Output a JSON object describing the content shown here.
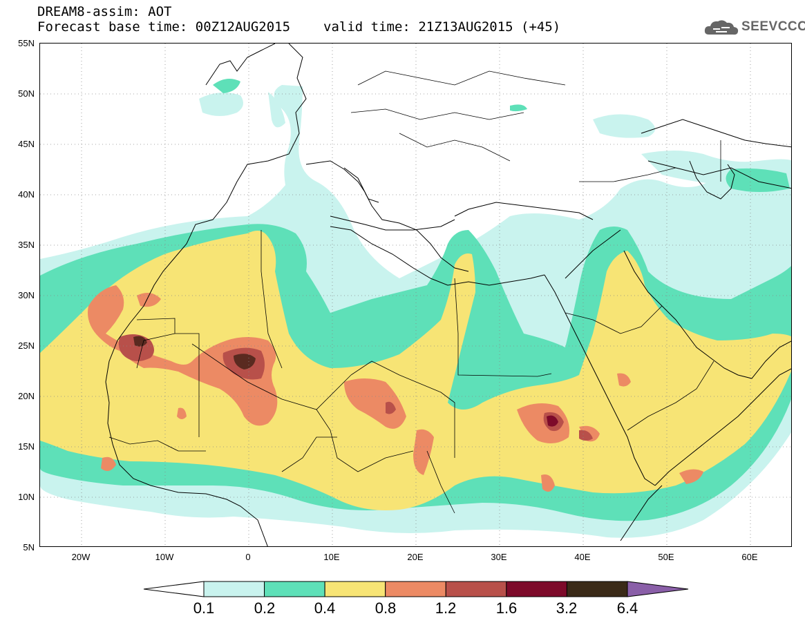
{
  "title": {
    "line1": "DREAM8-assim: AOT",
    "base_time": "Forecast base time: 00Z12AUG2015",
    "valid_time": "valid time: 21Z13AUG2015 (+45)"
  },
  "logo": {
    "text": "SEEVCCC",
    "icon": "cloud-logo-icon"
  },
  "axes": {
    "lat_labels": [
      "55N",
      "50N",
      "45N",
      "40N",
      "35N",
      "30N",
      "25N",
      "20N",
      "15N",
      "10N",
      "5N"
    ],
    "lon_labels": [
      "20W",
      "10W",
      "0",
      "10E",
      "20E",
      "30E",
      "40E",
      "50E",
      "60E"
    ],
    "lat_range": [
      5,
      55
    ],
    "lon_range": [
      -25,
      65
    ],
    "grid": "dotted"
  },
  "colorbar": {
    "labels": [
      "0.1",
      "0.2",
      "0.4",
      "0.8",
      "1.2",
      "1.6",
      "3.2",
      "6.4"
    ],
    "colors": [
      "#c9f3ee",
      "#5ee0b8",
      "#f7e475",
      "#ec8a64",
      "#b8504a",
      "#7d0a2a",
      "#3a2a18"
    ],
    "low_arrow_color": "#ffffff",
    "high_arrow_color": "#8a5fa8"
  },
  "chart_data": {
    "type": "heatmap",
    "variable": "AOT",
    "levels": [
      0.1,
      0.2,
      0.4,
      0.8,
      1.2,
      1.6,
      3.2,
      6.4
    ]
  }
}
